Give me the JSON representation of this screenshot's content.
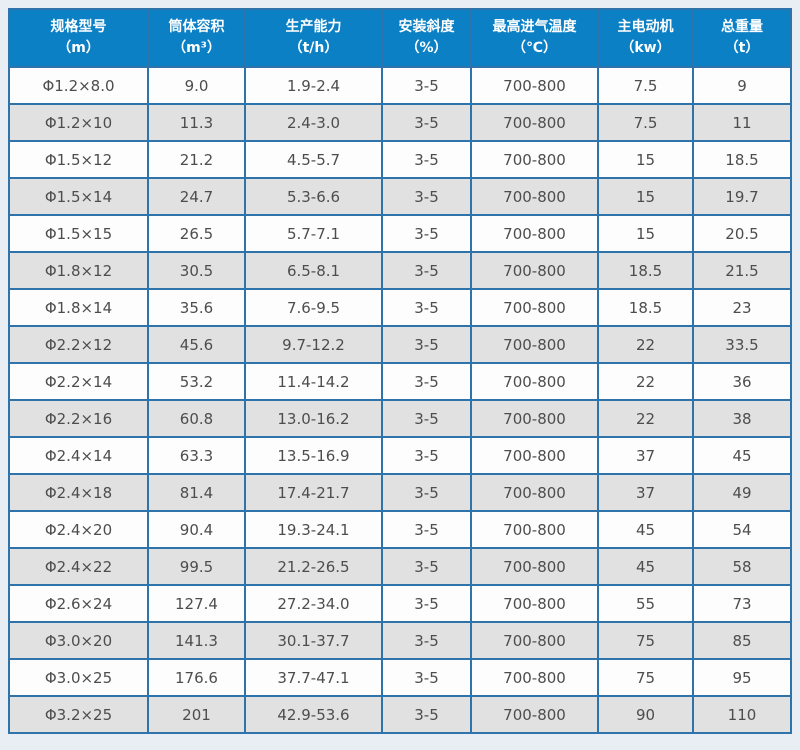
{
  "table": {
    "columns": [
      {
        "key": "spec",
        "label": "规格型号",
        "unit": "（m）"
      },
      {
        "key": "volume",
        "label": "筒体容积",
        "unit": "（m³）"
      },
      {
        "key": "capacity",
        "label": "生产能力",
        "unit": "（t/h）"
      },
      {
        "key": "slope",
        "label": "安装斜度",
        "unit": "（%）"
      },
      {
        "key": "temperature",
        "label": "最高进气温度",
        "unit": "（℃）"
      },
      {
        "key": "motor",
        "label": "主电动机",
        "unit": "（kw）"
      },
      {
        "key": "weight",
        "label": "总重量",
        "unit": "（t）"
      }
    ],
    "rows": [
      [
        "Φ1.2×8.0",
        "9.0",
        "1.9-2.4",
        "3-5",
        "700-800",
        "7.5",
        "9"
      ],
      [
        "Φ1.2×10",
        "11.3",
        "2.4-3.0",
        "3-5",
        "700-800",
        "7.5",
        "11"
      ],
      [
        "Φ1.5×12",
        "21.2",
        "4.5-5.7",
        "3-5",
        "700-800",
        "15",
        "18.5"
      ],
      [
        "Φ1.5×14",
        "24.7",
        "5.3-6.6",
        "3-5",
        "700-800",
        "15",
        "19.7"
      ],
      [
        "Φ1.5×15",
        "26.5",
        "5.7-7.1",
        "3-5",
        "700-800",
        "15",
        "20.5"
      ],
      [
        "Φ1.8×12",
        "30.5",
        "6.5-8.1",
        "3-5",
        "700-800",
        "18.5",
        "21.5"
      ],
      [
        "Φ1.8×14",
        "35.6",
        "7.6-9.5",
        "3-5",
        "700-800",
        "18.5",
        "23"
      ],
      [
        "Φ2.2×12",
        "45.6",
        "9.7-12.2",
        "3-5",
        "700-800",
        "22",
        "33.5"
      ],
      [
        "Φ2.2×14",
        "53.2",
        "11.4-14.2",
        "3-5",
        "700-800",
        "22",
        "36"
      ],
      [
        "Φ2.2×16",
        "60.8",
        "13.0-16.2",
        "3-5",
        "700-800",
        "22",
        "38"
      ],
      [
        "Φ2.4×14",
        "63.3",
        "13.5-16.9",
        "3-5",
        "700-800",
        "37",
        "45"
      ],
      [
        "Φ2.4×18",
        "81.4",
        "17.4-21.7",
        "3-5",
        "700-800",
        "37",
        "49"
      ],
      [
        "Φ2.4×20",
        "90.4",
        "19.3-24.1",
        "3-5",
        "700-800",
        "45",
        "54"
      ],
      [
        "Φ2.4×22",
        "99.5",
        "21.2-26.5",
        "3-5",
        "700-800",
        "45",
        "58"
      ],
      [
        "Φ2.6×24",
        "127.4",
        "27.2-34.0",
        "3-5",
        "700-800",
        "55",
        "73"
      ],
      [
        "Φ3.0×20",
        "141.3",
        "30.1-37.7",
        "3-5",
        "700-800",
        "75",
        "85"
      ],
      [
        "Φ3.0×25",
        "176.6",
        "37.7-47.1",
        "3-5",
        "700-800",
        "75",
        "95"
      ],
      [
        "Φ3.2×25",
        "201",
        "42.9-53.6",
        "3-5",
        "700-800",
        "90",
        "110"
      ]
    ]
  },
  "colors": {
    "header_background": "#0c80c5",
    "header_text": "#ffffff",
    "border": "#2e74ab",
    "outer_border": "#24659c",
    "row_even_background": "#e1e1e1",
    "row_odd_background": "#fdfdfd",
    "cell_text": "#4d4d4d",
    "page_background": "#e9eef4"
  }
}
